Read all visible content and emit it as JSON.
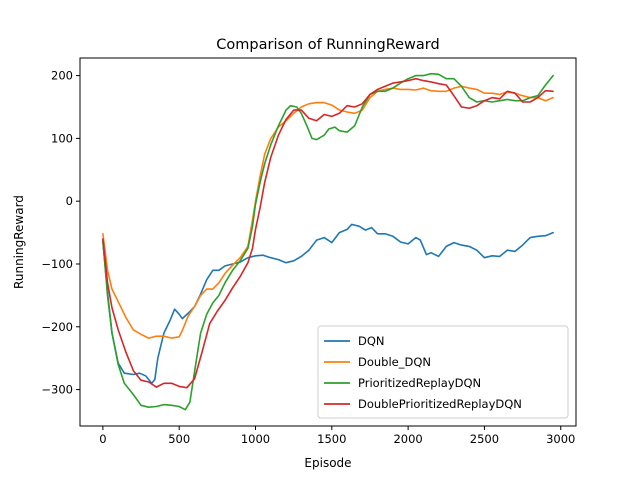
{
  "chart_data": {
    "type": "line",
    "title": "Comparison of RunningReward",
    "xlabel": "Episode",
    "ylabel": "RunningReward",
    "xlim": [
      -150,
      3100
    ],
    "ylim": [
      -358,
      228
    ],
    "xticks": [
      0,
      500,
      1000,
      1500,
      2000,
      2500,
      3000
    ],
    "yticks": [
      -300,
      -200,
      -100,
      0,
      100,
      200
    ],
    "grid": false,
    "legend_position": "lower-right",
    "series": [
      {
        "name": "DQN",
        "color": "#1f77b4",
        "points": [
          [
            0,
            -65
          ],
          [
            30,
            -145
          ],
          [
            60,
            -210
          ],
          [
            100,
            -258
          ],
          [
            140,
            -274
          ],
          [
            200,
            -276
          ],
          [
            240,
            -274
          ],
          [
            280,
            -278
          ],
          [
            320,
            -290
          ],
          [
            340,
            -284
          ],
          [
            360,
            -250
          ],
          [
            400,
            -210
          ],
          [
            440,
            -190
          ],
          [
            470,
            -172
          ],
          [
            500,
            -180
          ],
          [
            520,
            -187
          ],
          [
            560,
            -178
          ],
          [
            600,
            -168
          ],
          [
            640,
            -148
          ],
          [
            680,
            -125
          ],
          [
            720,
            -110
          ],
          [
            760,
            -110
          ],
          [
            800,
            -103
          ],
          [
            850,
            -100
          ],
          [
            900,
            -97
          ],
          [
            950,
            -90
          ],
          [
            1000,
            -87
          ],
          [
            1050,
            -86
          ],
          [
            1100,
            -90
          ],
          [
            1150,
            -93
          ],
          [
            1200,
            -98
          ],
          [
            1250,
            -95
          ],
          [
            1300,
            -88
          ],
          [
            1350,
            -78
          ],
          [
            1400,
            -62
          ],
          [
            1450,
            -58
          ],
          [
            1500,
            -66
          ],
          [
            1550,
            -50
          ],
          [
            1600,
            -45
          ],
          [
            1630,
            -37
          ],
          [
            1680,
            -40
          ],
          [
            1720,
            -46
          ],
          [
            1760,
            -42
          ],
          [
            1800,
            -52
          ],
          [
            1850,
            -52
          ],
          [
            1900,
            -56
          ],
          [
            1950,
            -65
          ],
          [
            2000,
            -68
          ],
          [
            2050,
            -58
          ],
          [
            2080,
            -62
          ],
          [
            2120,
            -85
          ],
          [
            2150,
            -82
          ],
          [
            2200,
            -88
          ],
          [
            2250,
            -72
          ],
          [
            2300,
            -66
          ],
          [
            2350,
            -70
          ],
          [
            2400,
            -72
          ],
          [
            2450,
            -78
          ],
          [
            2500,
            -90
          ],
          [
            2550,
            -87
          ],
          [
            2600,
            -88
          ],
          [
            2650,
            -78
          ],
          [
            2700,
            -80
          ],
          [
            2750,
            -70
          ],
          [
            2800,
            -58
          ],
          [
            2850,
            -56
          ],
          [
            2900,
            -55
          ],
          [
            2950,
            -50
          ]
        ]
      },
      {
        "name": "Double_DQN",
        "color": "#ff7f0e",
        "points": [
          [
            0,
            -52
          ],
          [
            30,
            -110
          ],
          [
            60,
            -140
          ],
          [
            100,
            -160
          ],
          [
            150,
            -185
          ],
          [
            200,
            -205
          ],
          [
            250,
            -212
          ],
          [
            300,
            -218
          ],
          [
            350,
            -215
          ],
          [
            400,
            -215
          ],
          [
            450,
            -218
          ],
          [
            500,
            -216
          ],
          [
            520,
            -206
          ],
          [
            560,
            -182
          ],
          [
            600,
            -168
          ],
          [
            640,
            -150
          ],
          [
            680,
            -140
          ],
          [
            720,
            -140
          ],
          [
            760,
            -130
          ],
          [
            800,
            -115
          ],
          [
            850,
            -102
          ],
          [
            900,
            -90
          ],
          [
            950,
            -72
          ],
          [
            980,
            -30
          ],
          [
            1000,
            0
          ],
          [
            1030,
            40
          ],
          [
            1060,
            75
          ],
          [
            1100,
            100
          ],
          [
            1150,
            118
          ],
          [
            1200,
            128
          ],
          [
            1250,
            140
          ],
          [
            1300,
            150
          ],
          [
            1350,
            155
          ],
          [
            1400,
            157
          ],
          [
            1450,
            157
          ],
          [
            1500,
            153
          ],
          [
            1550,
            145
          ],
          [
            1600,
            142
          ],
          [
            1650,
            140
          ],
          [
            1700,
            145
          ],
          [
            1750,
            165
          ],
          [
            1800,
            175
          ],
          [
            1850,
            178
          ],
          [
            1900,
            180
          ],
          [
            1950,
            178
          ],
          [
            2000,
            178
          ],
          [
            2050,
            177
          ],
          [
            2100,
            180
          ],
          [
            2150,
            176
          ],
          [
            2200,
            175
          ],
          [
            2250,
            175
          ],
          [
            2300,
            180
          ],
          [
            2350,
            183
          ],
          [
            2400,
            180
          ],
          [
            2450,
            178
          ],
          [
            2500,
            172
          ],
          [
            2550,
            172
          ],
          [
            2600,
            170
          ],
          [
            2650,
            174
          ],
          [
            2700,
            172
          ],
          [
            2750,
            168
          ],
          [
            2800,
            165
          ],
          [
            2850,
            165
          ],
          [
            2900,
            160
          ],
          [
            2950,
            165
          ]
        ]
      },
      {
        "name": "PrioritizedReplayDQN",
        "color": "#2ca02c",
        "points": [
          [
            0,
            -62
          ],
          [
            30,
            -150
          ],
          [
            60,
            -210
          ],
          [
            100,
            -260
          ],
          [
            140,
            -290
          ],
          [
            200,
            -308
          ],
          [
            250,
            -325
          ],
          [
            300,
            -328
          ],
          [
            350,
            -327
          ],
          [
            400,
            -324
          ],
          [
            450,
            -325
          ],
          [
            500,
            -327
          ],
          [
            540,
            -332
          ],
          [
            570,
            -320
          ],
          [
            600,
            -272
          ],
          [
            640,
            -210
          ],
          [
            680,
            -180
          ],
          [
            720,
            -162
          ],
          [
            760,
            -150
          ],
          [
            800,
            -130
          ],
          [
            850,
            -110
          ],
          [
            900,
            -95
          ],
          [
            950,
            -75
          ],
          [
            980,
            -40
          ],
          [
            1000,
            -5
          ],
          [
            1030,
            30
          ],
          [
            1060,
            60
          ],
          [
            1100,
            90
          ],
          [
            1150,
            120
          ],
          [
            1200,
            145
          ],
          [
            1230,
            152
          ],
          [
            1270,
            150
          ],
          [
            1300,
            140
          ],
          [
            1340,
            118
          ],
          [
            1370,
            100
          ],
          [
            1400,
            98
          ],
          [
            1450,
            105
          ],
          [
            1480,
            115
          ],
          [
            1520,
            118
          ],
          [
            1550,
            112
          ],
          [
            1600,
            110
          ],
          [
            1650,
            120
          ],
          [
            1700,
            150
          ],
          [
            1750,
            170
          ],
          [
            1800,
            175
          ],
          [
            1850,
            175
          ],
          [
            1900,
            180
          ],
          [
            1950,
            188
          ],
          [
            2000,
            195
          ],
          [
            2050,
            200
          ],
          [
            2100,
            200
          ],
          [
            2150,
            203
          ],
          [
            2200,
            202
          ],
          [
            2250,
            195
          ],
          [
            2300,
            195
          ],
          [
            2350,
            183
          ],
          [
            2400,
            165
          ],
          [
            2450,
            158
          ],
          [
            2500,
            160
          ],
          [
            2550,
            158
          ],
          [
            2600,
            160
          ],
          [
            2650,
            162
          ],
          [
            2700,
            160
          ],
          [
            2750,
            160
          ],
          [
            2800,
            165
          ],
          [
            2850,
            168
          ],
          [
            2900,
            185
          ],
          [
            2950,
            200
          ]
        ]
      },
      {
        "name": "DoublePrioritizedReplayDQN",
        "color": "#d62728",
        "points": [
          [
            0,
            -60
          ],
          [
            30,
            -130
          ],
          [
            60,
            -170
          ],
          [
            100,
            -205
          ],
          [
            150,
            -240
          ],
          [
            200,
            -270
          ],
          [
            250,
            -285
          ],
          [
            300,
            -288
          ],
          [
            350,
            -296
          ],
          [
            400,
            -290
          ],
          [
            450,
            -290
          ],
          [
            500,
            -295
          ],
          [
            550,
            -297
          ],
          [
            600,
            -283
          ],
          [
            650,
            -240
          ],
          [
            700,
            -195
          ],
          [
            750,
            -175
          ],
          [
            800,
            -158
          ],
          [
            850,
            -138
          ],
          [
            900,
            -120
          ],
          [
            950,
            -98
          ],
          [
            980,
            -75
          ],
          [
            1000,
            -45
          ],
          [
            1030,
            -10
          ],
          [
            1060,
            30
          ],
          [
            1100,
            70
          ],
          [
            1150,
            105
          ],
          [
            1200,
            130
          ],
          [
            1250,
            145
          ],
          [
            1300,
            145
          ],
          [
            1350,
            132
          ],
          [
            1400,
            128
          ],
          [
            1450,
            138
          ],
          [
            1500,
            135
          ],
          [
            1550,
            140
          ],
          [
            1600,
            152
          ],
          [
            1650,
            150
          ],
          [
            1700,
            155
          ],
          [
            1750,
            170
          ],
          [
            1800,
            178
          ],
          [
            1850,
            183
          ],
          [
            1900,
            188
          ],
          [
            1950,
            190
          ],
          [
            2000,
            192
          ],
          [
            2050,
            195
          ],
          [
            2100,
            192
          ],
          [
            2150,
            190
          ],
          [
            2200,
            187
          ],
          [
            2250,
            185
          ],
          [
            2300,
            168
          ],
          [
            2350,
            150
          ],
          [
            2400,
            148
          ],
          [
            2450,
            152
          ],
          [
            2500,
            160
          ],
          [
            2550,
            165
          ],
          [
            2600,
            163
          ],
          [
            2650,
            175
          ],
          [
            2700,
            172
          ],
          [
            2750,
            158
          ],
          [
            2800,
            158
          ],
          [
            2850,
            165
          ],
          [
            2900,
            176
          ],
          [
            2950,
            175
          ]
        ]
      }
    ]
  }
}
